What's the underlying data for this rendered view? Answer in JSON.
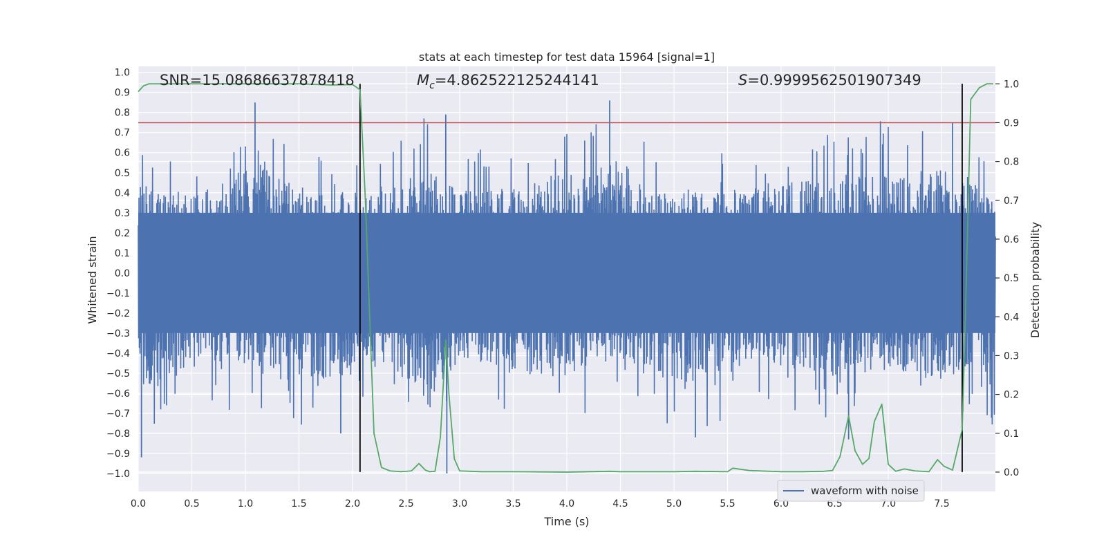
{
  "chart_data": {
    "type": "line",
    "title": "stats at each timestep for test data 15964 [signal=1]",
    "xlabel": "Time (s)",
    "ylabel_left": "Whitened strain",
    "ylabel_right": "Detection probability",
    "xlim": [
      0.0,
      8.0
    ],
    "ylim_left": [
      -1.09,
      1.03
    ],
    "ylim_right": [
      -0.05,
      1.045
    ],
    "x_ticks": [
      0.0,
      0.5,
      1.0,
      1.5,
      2.0,
      2.5,
      3.0,
      3.5,
      4.0,
      4.5,
      5.0,
      5.5,
      6.0,
      6.5,
      7.0,
      7.5
    ],
    "y_ticks_left": [
      1.0,
      0.9,
      0.8,
      0.7,
      0.6,
      0.5,
      0.4,
      0.3,
      0.2,
      0.1,
      0.0,
      -0.1,
      -0.2,
      -0.3,
      -0.4,
      -0.5,
      -0.6,
      -0.7,
      -0.8,
      -0.9,
      -1.0
    ],
    "y_ticks_right": [
      1.0,
      0.9,
      0.8,
      0.7,
      0.6,
      0.5,
      0.4,
      0.3,
      0.2,
      0.1,
      0.0
    ],
    "grid": true,
    "legend": {
      "position": "lower-right",
      "entries": [
        "waveform with noise"
      ]
    },
    "annotations": {
      "snr": "SNR=15.08686637878418",
      "mc_prefix": "M",
      "mc_sub": "c",
      "mc_value": "=4.862522125244141",
      "s_prefix": "S",
      "s_value": "=0.9999562501907349"
    },
    "threshold_line": {
      "axis": "right",
      "value": 0.9,
      "color": "#c44e52"
    },
    "vertical_lines": [
      2.07,
      7.69
    ],
    "colors": {
      "waveform": "#4c72b0",
      "probability": "#55a868",
      "threshold": "#c44e52",
      "vlines": "#000000",
      "background": "#eaeaf2"
    },
    "waveform_envelope": {
      "x": [
        0.0,
        0.3,
        0.6,
        0.9,
        1.2,
        1.5,
        1.8,
        2.1,
        2.4,
        2.7,
        3.0,
        3.3,
        3.6,
        3.9,
        4.2,
        4.5,
        4.8,
        5.1,
        5.4,
        5.7,
        6.0,
        6.3,
        6.6,
        6.9,
        7.2,
        7.5,
        7.8,
        8.0
      ],
      "upper": [
        0.65,
        0.58,
        0.62,
        0.72,
        0.85,
        0.6,
        0.62,
        0.6,
        0.65,
        0.79,
        0.63,
        0.62,
        0.66,
        0.75,
        0.72,
        0.86,
        0.6,
        0.62,
        0.6,
        0.63,
        0.72,
        0.7,
        0.72,
        0.78,
        0.7,
        0.8,
        0.75,
        0.58
      ],
      "lower": [
        -0.92,
        -0.78,
        -0.62,
        -0.72,
        -0.7,
        -0.78,
        -0.8,
        -0.75,
        -0.7,
        -1.0,
        -0.65,
        -0.68,
        -0.76,
        -0.8,
        -0.7,
        -0.65,
        -0.72,
        -0.82,
        -0.8,
        -0.65,
        -0.7,
        -0.75,
        -0.85,
        -0.72,
        -0.78,
        -0.82,
        -0.7,
        -0.85
      ]
    },
    "waveform_spikes": [
      {
        "x": 0.03,
        "y": -0.92
      },
      {
        "x": 1.09,
        "y": 0.85
      },
      {
        "x": 1.89,
        "y": -0.8
      },
      {
        "x": 2.87,
        "y": 0.79
      },
      {
        "x": 2.88,
        "y": -1.0
      },
      {
        "x": 4.4,
        "y": 0.86
      },
      {
        "x": 5.2,
        "y": -0.82
      },
      {
        "x": 6.63,
        "y": -0.83
      },
      {
        "x": 7.6,
        "y": 0.75
      }
    ],
    "probability_series": {
      "x": [
        0.0,
        0.05,
        0.1,
        0.5,
        1.0,
        1.5,
        1.8,
        2.0,
        2.07,
        2.12,
        2.2,
        2.27,
        2.35,
        2.45,
        2.55,
        2.62,
        2.68,
        2.72,
        2.77,
        2.82,
        2.87,
        2.9,
        2.95,
        3.0,
        3.1,
        3.2,
        3.5,
        4.0,
        4.4,
        4.5,
        5.0,
        5.2,
        5.5,
        5.55,
        5.7,
        6.0,
        6.2,
        6.4,
        6.48,
        6.55,
        6.63,
        6.69,
        6.76,
        6.82,
        6.87,
        6.94,
        7.0,
        7.07,
        7.15,
        7.25,
        7.38,
        7.46,
        7.52,
        7.6,
        7.69,
        7.72,
        7.77,
        7.85,
        7.92,
        7.98
      ],
      "y": [
        0.98,
        0.995,
        1.0,
        1.0,
        1.0,
        1.0,
        0.997,
        0.998,
        0.985,
        0.7,
        0.1,
        0.012,
        0.003,
        0.001,
        0.003,
        0.022,
        0.005,
        0.001,
        0.002,
        0.09,
        0.34,
        0.2,
        0.034,
        0.003,
        0.002,
        0.001,
        0.001,
        0.0,
        0.002,
        0.001,
        0.001,
        0.002,
        0.001,
        0.01,
        0.004,
        0.001,
        0.001,
        0.002,
        0.004,
        0.04,
        0.145,
        0.055,
        0.02,
        0.035,
        0.13,
        0.175,
        0.02,
        0.002,
        0.008,
        0.003,
        0.001,
        0.032,
        0.015,
        0.005,
        0.11,
        0.4,
        0.96,
        0.99,
        1.0,
        1.0
      ]
    }
  }
}
